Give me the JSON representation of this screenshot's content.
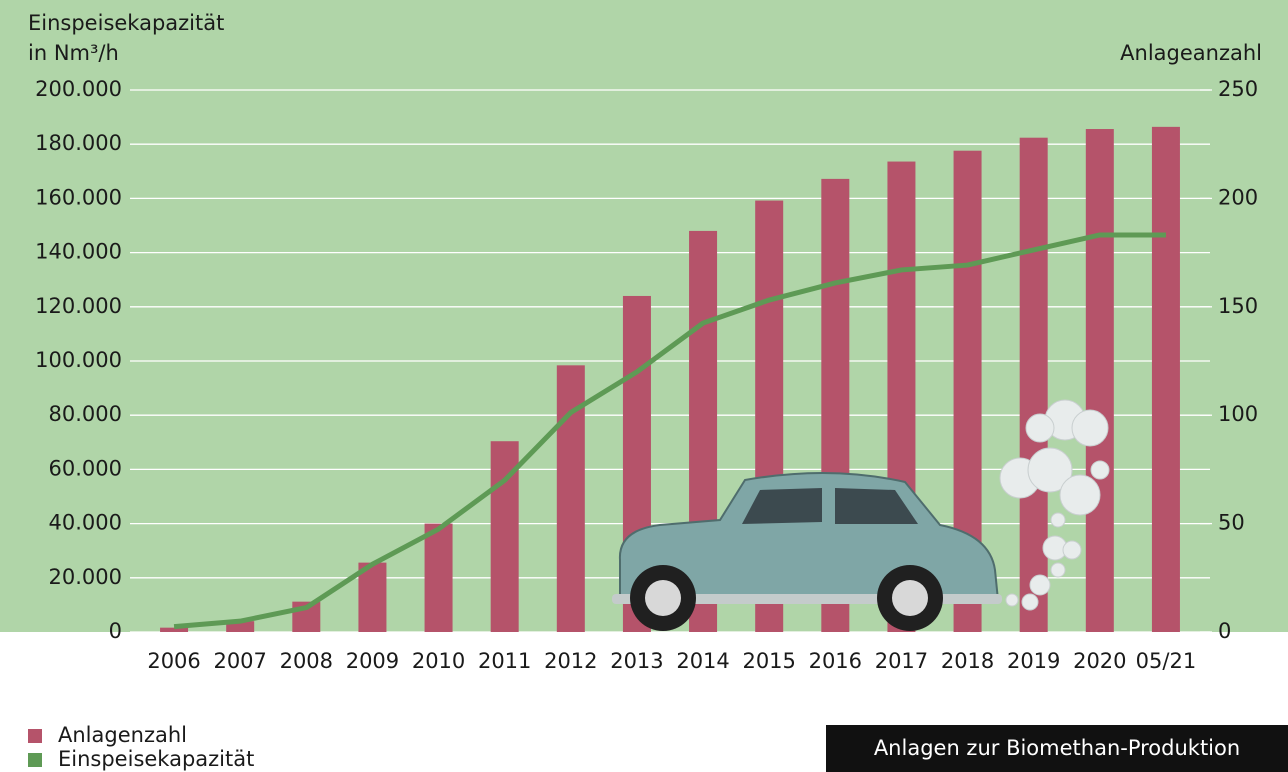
{
  "chart_data": {
    "type": "bar",
    "ylabel": [
      "Einspeisekapazität",
      "in Nm³/h"
    ],
    "y2label": "Anlageanzahl",
    "categories": [
      "2006",
      "2007",
      "2008",
      "2009",
      "2010",
      "2011",
      "2012",
      "2013",
      "2014",
      "2015",
      "2016",
      "2017",
      "2018",
      "2019",
      "2020",
      "05/21"
    ],
    "series": [
      {
        "name": "Anlagenzahl",
        "type": "bar",
        "axis": "y2",
        "color": "#b5536a",
        "values": [
          2,
          5,
          14,
          32,
          50,
          88,
          123,
          155,
          185,
          199,
          209,
          217,
          222,
          228,
          232,
          233
        ]
      },
      {
        "name": "Einspeisekapazität",
        "type": "line",
        "color": "#5e9a55",
        "values": [
          2000,
          4000,
          9000,
          25000,
          38000,
          56000,
          81000,
          96000,
          114000,
          122500,
          128800,
          133600,
          135400,
          141000,
          146500,
          146500
        ]
      }
    ],
    "ylim": [
      0,
      200000
    ],
    "yticks": [
      0,
      {
        "value": 20000,
        "label": "20.000"
      },
      {
        "value": 40000,
        "label": "40.000"
      },
      {
        "value": 60000,
        "label": "60.000"
      },
      {
        "value": 80000,
        "label": "80.000"
      },
      {
        "value": 100000,
        "label": "100.000"
      },
      {
        "value": 120000,
        "label": "120.000"
      },
      {
        "value": 140000,
        "label": "140.000"
      },
      {
        "value": 160000,
        "label": "160.000"
      },
      {
        "value": 180000,
        "label": "180.000"
      },
      {
        "value": 200000,
        "label": "200.000"
      }
    ],
    "y2lim": [
      0,
      250
    ],
    "y2ticks": [
      0,
      50,
      100,
      150,
      200,
      250
    ],
    "grid": true,
    "background": "#b0d5a8",
    "caption": "Anlagen zur Biomethan-Produktion"
  }
}
